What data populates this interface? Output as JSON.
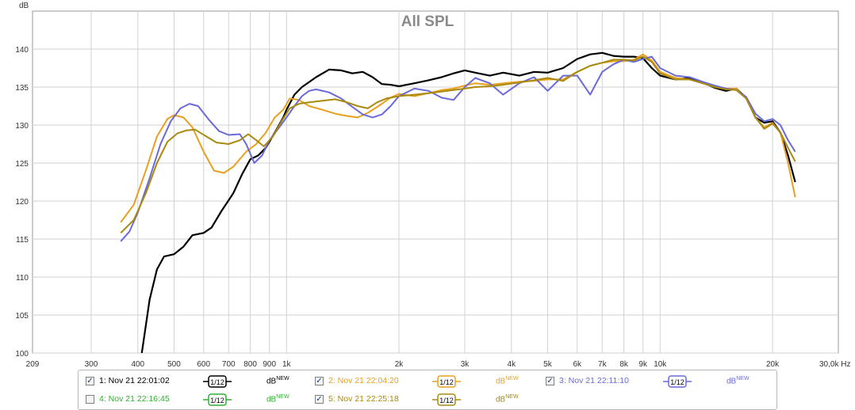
{
  "chart_data": {
    "type": "line",
    "title": "All SPL",
    "ylabel": "dB",
    "xlabel": "Hz",
    "x_scale": "log",
    "xlim": [
      209,
      30000
    ],
    "ylim": [
      100,
      145
    ],
    "grid": true,
    "y_ticks": [
      100,
      105,
      110,
      115,
      120,
      125,
      130,
      135,
      140
    ],
    "x_ticks": [
      {
        "v": 209,
        "label": "209"
      },
      {
        "v": 300,
        "label": "300"
      },
      {
        "v": 400,
        "label": "400"
      },
      {
        "v": 500,
        "label": "500"
      },
      {
        "v": 600,
        "label": "600"
      },
      {
        "v": 700,
        "label": "700"
      },
      {
        "v": 800,
        "label": "800"
      },
      {
        "v": 900,
        "label": "900"
      },
      {
        "v": 1000,
        "label": "1k"
      },
      {
        "v": 2000,
        "label": "2k"
      },
      {
        "v": 3000,
        "label": "3k"
      },
      {
        "v": 4000,
        "label": "4k"
      },
      {
        "v": 5000,
        "label": "5k"
      },
      {
        "v": 6000,
        "label": "6k"
      },
      {
        "v": 7000,
        "label": "7k"
      },
      {
        "v": 8000,
        "label": "8k"
      },
      {
        "v": 9000,
        "label": "9k"
      },
      {
        "v": 10000,
        "label": "10k"
      },
      {
        "v": 20000,
        "label": "20k"
      },
      {
        "v": 30000,
        "label": "30,0k Hz"
      }
    ],
    "series": [
      {
        "name": "1: Nov 21 22:01:02",
        "color": "#000000",
        "visible": true,
        "points": [
          [
            410,
            100
          ],
          [
            430,
            107
          ],
          [
            450,
            111
          ],
          [
            470,
            112.7
          ],
          [
            500,
            113
          ],
          [
            530,
            114
          ],
          [
            560,
            115.5
          ],
          [
            600,
            115.8
          ],
          [
            630,
            116.5
          ],
          [
            670,
            118.7
          ],
          [
            720,
            121
          ],
          [
            760,
            123.5
          ],
          [
            800,
            125.5
          ],
          [
            840,
            126
          ],
          [
            880,
            127
          ],
          [
            930,
            129
          ],
          [
            980,
            131
          ],
          [
            1000,
            132
          ],
          [
            1050,
            134
          ],
          [
            1100,
            135
          ],
          [
            1200,
            136.3
          ],
          [
            1300,
            137.3
          ],
          [
            1400,
            137.2
          ],
          [
            1500,
            136.8
          ],
          [
            1600,
            137
          ],
          [
            1700,
            136.3
          ],
          [
            1800,
            135.4
          ],
          [
            1900,
            135.3
          ],
          [
            2000,
            135.1
          ],
          [
            2200,
            135.5
          ],
          [
            2400,
            135.9
          ],
          [
            2600,
            136.3
          ],
          [
            2800,
            136.8
          ],
          [
            3000,
            137.2
          ],
          [
            3200,
            136.9
          ],
          [
            3500,
            136.5
          ],
          [
            3800,
            136.9
          ],
          [
            4200,
            136.5
          ],
          [
            4600,
            137
          ],
          [
            5000,
            136.9
          ],
          [
            5500,
            137.5
          ],
          [
            6000,
            138.7
          ],
          [
            6500,
            139.3
          ],
          [
            7000,
            139.5
          ],
          [
            7500,
            139.1
          ],
          [
            8000,
            139
          ],
          [
            8500,
            139
          ],
          [
            9000,
            138.8
          ],
          [
            9500,
            137.5
          ],
          [
            10000,
            136.5
          ],
          [
            11000,
            136
          ],
          [
            12000,
            136.2
          ],
          [
            13000,
            135.6
          ],
          [
            14000,
            134.9
          ],
          [
            15000,
            134.5
          ],
          [
            16000,
            134.8
          ],
          [
            17000,
            133.6
          ],
          [
            18000,
            131
          ],
          [
            19000,
            130.3
          ],
          [
            20000,
            130.5
          ],
          [
            21000,
            129
          ],
          [
            22000,
            126
          ],
          [
            23000,
            122.5
          ]
        ]
      },
      {
        "name": "2: Nov 21 22:04:20",
        "color": "#e8a020",
        "visible": true,
        "points": [
          [
            360,
            117.2
          ],
          [
            390,
            119.5
          ],
          [
            420,
            124
          ],
          [
            450,
            128.5
          ],
          [
            480,
            130.8
          ],
          [
            500,
            131.3
          ],
          [
            530,
            131
          ],
          [
            560,
            129.7
          ],
          [
            600,
            126.5
          ],
          [
            640,
            124
          ],
          [
            680,
            123.7
          ],
          [
            720,
            124.5
          ],
          [
            780,
            126.5
          ],
          [
            830,
            127.5
          ],
          [
            880,
            129
          ],
          [
            930,
            131
          ],
          [
            980,
            132
          ],
          [
            1020,
            133.5
          ],
          [
            1080,
            133.3
          ],
          [
            1150,
            132.5
          ],
          [
            1250,
            132
          ],
          [
            1350,
            131.5
          ],
          [
            1450,
            131.2
          ],
          [
            1550,
            131
          ],
          [
            1650,
            131.6
          ],
          [
            1750,
            132.4
          ],
          [
            1900,
            133.6
          ],
          [
            2000,
            134.1
          ],
          [
            2200,
            133.8
          ],
          [
            2400,
            134.2
          ],
          [
            2600,
            134.6
          ],
          [
            2800,
            134.8
          ],
          [
            3000,
            135.2
          ],
          [
            3200,
            135.5
          ],
          [
            3500,
            135.3
          ],
          [
            3800,
            135.5
          ],
          [
            4200,
            135.7
          ],
          [
            4600,
            135.8
          ],
          [
            5000,
            136
          ],
          [
            5500,
            136
          ],
          [
            6000,
            137
          ],
          [
            6500,
            137.8
          ],
          [
            7000,
            138.2
          ],
          [
            7500,
            138.4
          ],
          [
            8000,
            138.4
          ],
          [
            8500,
            138.6
          ],
          [
            9000,
            139.3
          ],
          [
            9500,
            138.5
          ],
          [
            10000,
            137
          ],
          [
            11000,
            136.2
          ],
          [
            12000,
            136
          ],
          [
            13000,
            135.5
          ],
          [
            14000,
            135
          ],
          [
            15000,
            134.8
          ],
          [
            16000,
            134.8
          ],
          [
            17000,
            133.5
          ],
          [
            18000,
            131
          ],
          [
            19000,
            129.7
          ],
          [
            20000,
            130.3
          ],
          [
            21000,
            129
          ],
          [
            22000,
            125
          ],
          [
            23000,
            120.5
          ]
        ]
      },
      {
        "name": "3: Nov 21 22:11:10",
        "color": "#6a6ad8",
        "visible": true,
        "points": [
          [
            360,
            114.7
          ],
          [
            380,
            116
          ],
          [
            400,
            118.5
          ],
          [
            430,
            123
          ],
          [
            460,
            127.5
          ],
          [
            490,
            130.5
          ],
          [
            520,
            132.2
          ],
          [
            550,
            132.8
          ],
          [
            580,
            132.5
          ],
          [
            620,
            130.7
          ],
          [
            660,
            129.2
          ],
          [
            700,
            128.7
          ],
          [
            750,
            128.8
          ],
          [
            780,
            127.5
          ],
          [
            820,
            125
          ],
          [
            860,
            126
          ],
          [
            900,
            128
          ],
          [
            950,
            129.5
          ],
          [
            1000,
            131
          ],
          [
            1050,
            132.5
          ],
          [
            1100,
            133.8
          ],
          [
            1150,
            134.5
          ],
          [
            1200,
            134.7
          ],
          [
            1300,
            134.3
          ],
          [
            1400,
            133.5
          ],
          [
            1500,
            132.4
          ],
          [
            1600,
            131.4
          ],
          [
            1700,
            131
          ],
          [
            1800,
            131.4
          ],
          [
            1900,
            132.5
          ],
          [
            2000,
            133.8
          ],
          [
            2200,
            134.8
          ],
          [
            2400,
            134.5
          ],
          [
            2600,
            133.6
          ],
          [
            2800,
            133.3
          ],
          [
            3000,
            135
          ],
          [
            3200,
            136.2
          ],
          [
            3500,
            135.5
          ],
          [
            3800,
            134
          ],
          [
            4200,
            135.5
          ],
          [
            4600,
            136.3
          ],
          [
            5000,
            134.5
          ],
          [
            5500,
            136.5
          ],
          [
            6000,
            136.5
          ],
          [
            6500,
            134
          ],
          [
            7000,
            137
          ],
          [
            7500,
            138
          ],
          [
            8000,
            138.6
          ],
          [
            8500,
            138.3
          ],
          [
            9000,
            138.7
          ],
          [
            9500,
            139
          ],
          [
            10000,
            137.5
          ],
          [
            11000,
            136.5
          ],
          [
            12000,
            136.3
          ],
          [
            13000,
            135.7
          ],
          [
            14000,
            135.2
          ],
          [
            15000,
            134.8
          ],
          [
            16000,
            134.6
          ],
          [
            17000,
            133.7
          ],
          [
            18000,
            131.5
          ],
          [
            19000,
            130.5
          ],
          [
            20000,
            130.8
          ],
          [
            21000,
            130
          ],
          [
            22000,
            128
          ],
          [
            23000,
            126.5
          ]
        ]
      },
      {
        "name": "4: Nov 21 22:16:45",
        "color": "#30b030",
        "visible": false,
        "points": []
      },
      {
        "name": "5: Nov 21 22:25:18",
        "color": "#a88a10",
        "visible": true,
        "points": [
          [
            360,
            115.8
          ],
          [
            390,
            117.5
          ],
          [
            420,
            121
          ],
          [
            450,
            125
          ],
          [
            480,
            127.8
          ],
          [
            510,
            128.9
          ],
          [
            540,
            129.3
          ],
          [
            570,
            129.4
          ],
          [
            610,
            128.5
          ],
          [
            650,
            127.7
          ],
          [
            700,
            127.5
          ],
          [
            750,
            128
          ],
          [
            790,
            128.8
          ],
          [
            830,
            128
          ],
          [
            870,
            127.2
          ],
          [
            920,
            128.5
          ],
          [
            970,
            130.5
          ],
          [
            1020,
            132.2
          ],
          [
            1080,
            132.8
          ],
          [
            1150,
            133
          ],
          [
            1250,
            133.2
          ],
          [
            1350,
            133.4
          ],
          [
            1450,
            133
          ],
          [
            1550,
            132.5
          ],
          [
            1650,
            132.2
          ],
          [
            1750,
            133
          ],
          [
            1850,
            133.5
          ],
          [
            2000,
            133.8
          ],
          [
            2200,
            134
          ],
          [
            2400,
            134.2
          ],
          [
            2600,
            134.4
          ],
          [
            2800,
            134.6
          ],
          [
            3000,
            134.8
          ],
          [
            3200,
            135
          ],
          [
            3500,
            135.1
          ],
          [
            3800,
            135.3
          ],
          [
            4200,
            135.6
          ],
          [
            4600,
            135.9
          ],
          [
            5000,
            136.2
          ],
          [
            5500,
            135.8
          ],
          [
            6000,
            137
          ],
          [
            6500,
            137.8
          ],
          [
            7000,
            138.2
          ],
          [
            7500,
            138.6
          ],
          [
            8000,
            138.6
          ],
          [
            8500,
            138.5
          ],
          [
            9000,
            139
          ],
          [
            9500,
            138.3
          ],
          [
            10000,
            136.8
          ],
          [
            11000,
            136
          ],
          [
            12000,
            136
          ],
          [
            13000,
            135.5
          ],
          [
            14000,
            135
          ],
          [
            15000,
            134.7
          ],
          [
            16000,
            134.6
          ],
          [
            17000,
            133.5
          ],
          [
            18000,
            131
          ],
          [
            19000,
            129.5
          ],
          [
            20000,
            130.2
          ],
          [
            21000,
            129
          ],
          [
            22000,
            127
          ],
          [
            23000,
            125.2
          ]
        ]
      }
    ]
  },
  "legend": {
    "smoothing_label": "1/12",
    "unit": "dB",
    "unit_sup": "NEW",
    "checked_mark": "✓",
    "items": [
      {
        "label": "1: Nov 21 22:01:02",
        "checked": true,
        "color": "#000000",
        "label_color": "#000000"
      },
      {
        "label": "2: Nov 21 22:04:20",
        "checked": true,
        "color": "#e8a020",
        "label_color": "#e8a020"
      },
      {
        "label": "3: Nov 21 22:11:10",
        "checked": true,
        "color": "#6a6ad8",
        "label_color": "#6a6ad8"
      },
      {
        "label": "4: Nov 21 22:16:45",
        "checked": false,
        "color": "#30b030",
        "label_color": "#30b030"
      },
      {
        "label": "5: Nov 21 22:25:18",
        "checked": true,
        "color": "#a88a10",
        "label_color": "#a88a10"
      }
    ]
  }
}
